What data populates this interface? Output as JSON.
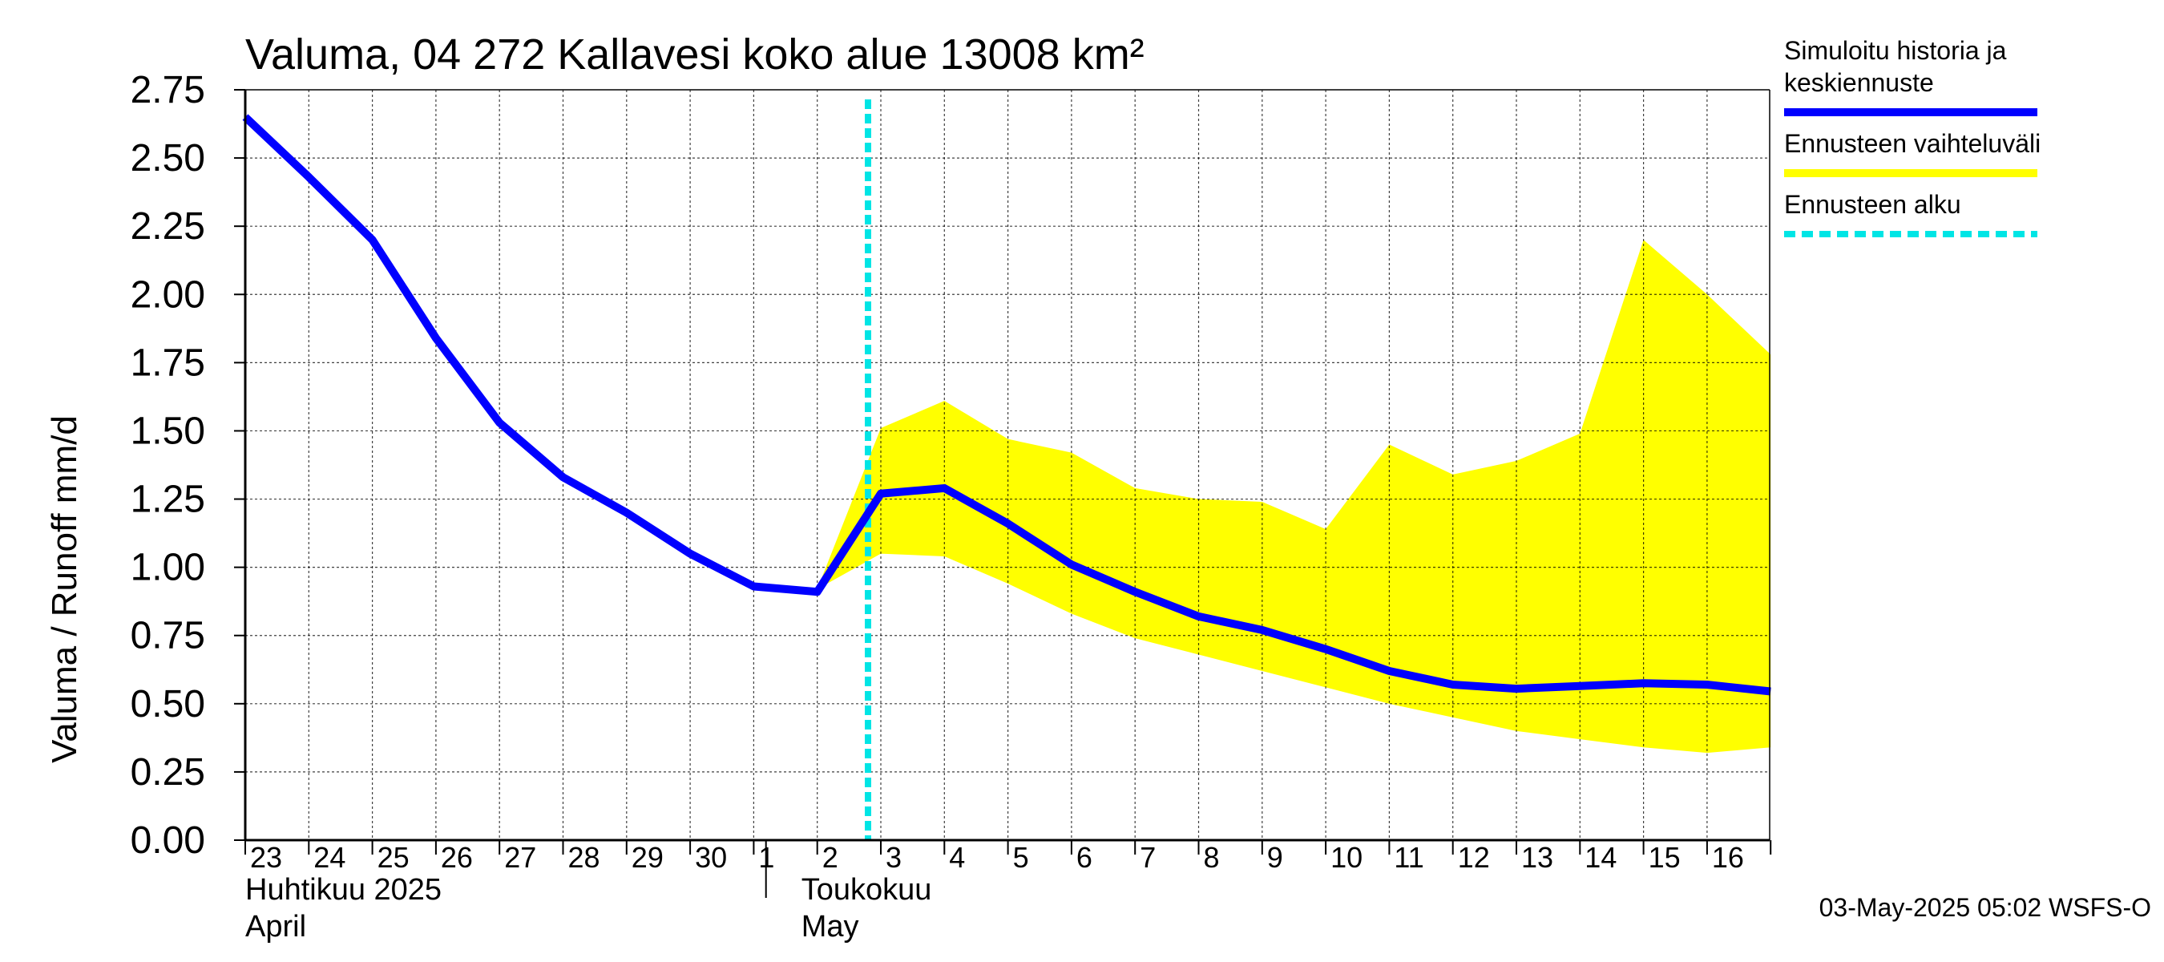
{
  "chart_data": {
    "type": "line",
    "title": "Valuma, 04 272 Kallavesi koko alue 13008 km²",
    "ylabel": "Valuma / Runoff    mm/d",
    "ylim": [
      0,
      2.75
    ],
    "yticks": [
      "0.00",
      "0.25",
      "0.50",
      "0.75",
      "1.00",
      "1.25",
      "1.50",
      "1.75",
      "2.00",
      "2.25",
      "2.50",
      "2.75"
    ],
    "x_day_labels": [
      "23",
      "24",
      "25",
      "26",
      "27",
      "28",
      "29",
      "30",
      "1",
      "2",
      "3",
      "4",
      "5",
      "6",
      "7",
      "8",
      "9",
      "10",
      "11",
      "12",
      "13",
      "14",
      "15",
      "16"
    ],
    "x_start": "2025-04-23",
    "x_end": "2025-05-16",
    "months": [
      {
        "line1": "Huhtikuu  2025",
        "line2": "April",
        "date": "2025-04-23"
      },
      {
        "line1": "Toukokuu",
        "line2": "May",
        "date": "2025-05-02"
      }
    ],
    "forecast_start": "2025-05-03",
    "series": [
      {
        "name": "Simuloitu historia ja keskiennuste",
        "color": "#0000ff",
        "x": [
          "2025-04-23",
          "2025-04-24",
          "2025-04-25",
          "2025-04-26",
          "2025-04-27",
          "2025-04-28",
          "2025-04-29",
          "2025-04-30",
          "2025-05-01",
          "2025-05-02",
          "2025-05-03",
          "2025-05-04",
          "2025-05-05",
          "2025-05-06",
          "2025-05-07",
          "2025-05-08",
          "2025-05-09",
          "2025-05-10",
          "2025-05-11",
          "2025-05-12",
          "2025-05-13",
          "2025-05-14",
          "2025-05-15",
          "2025-05-16",
          "2025-05-17"
        ],
        "values": [
          2.65,
          2.43,
          2.2,
          1.84,
          1.53,
          1.33,
          1.2,
          1.05,
          0.93,
          0.91,
          1.27,
          1.29,
          1.16,
          1.01,
          0.91,
          0.82,
          0.77,
          0.7,
          0.62,
          0.57,
          0.555,
          0.565,
          0.575,
          0.57,
          0.545
        ]
      }
    ],
    "band": {
      "name": "Ennusteen vaihteluväli",
      "color": "#ffff00",
      "x": [
        "2025-05-02",
        "2025-05-03",
        "2025-05-04",
        "2025-05-05",
        "2025-05-06",
        "2025-05-07",
        "2025-05-08",
        "2025-05-09",
        "2025-05-10",
        "2025-05-11",
        "2025-05-12",
        "2025-05-13",
        "2025-05-14",
        "2025-05-15",
        "2025-05-16",
        "2025-05-17"
      ],
      "upper": [
        0.92,
        1.51,
        1.61,
        1.47,
        1.42,
        1.29,
        1.25,
        1.24,
        1.14,
        1.45,
        1.34,
        1.39,
        1.49,
        2.2,
        2.0,
        1.78
      ],
      "lower": [
        0.92,
        1.05,
        1.04,
        0.94,
        0.83,
        0.74,
        0.68,
        0.62,
        0.56,
        0.5,
        0.45,
        0.4,
        0.37,
        0.34,
        0.32,
        0.34
      ]
    },
    "legend": [
      {
        "label_lines": [
          "Simuloitu historia ja",
          "keskiennuste"
        ],
        "color": "#0000ff",
        "style": "solid"
      },
      {
        "label_lines": [
          "Ennusteen vaihteluväli"
        ],
        "color": "#ffff00",
        "style": "solid"
      },
      {
        "label_lines": [
          "Ennusteen alku"
        ],
        "color": "#00e5e5",
        "style": "dashed"
      }
    ],
    "legend_position": "right",
    "grid": true
  },
  "footer": {
    "timestamp": "03-May-2025 05:02 WSFS-O"
  }
}
